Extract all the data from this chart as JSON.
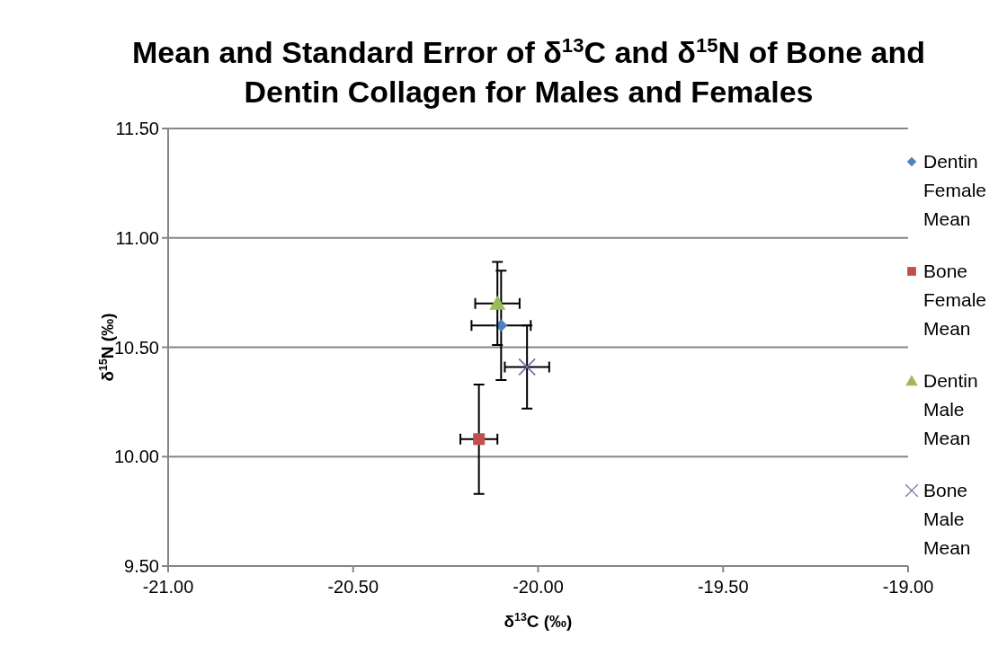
{
  "chart_data": {
    "type": "scatter",
    "title": "Mean and Standard Error of δ$^{13}$C and δ$^{15}$N of Bone and Dentin Collagen for Males and Females",
    "xlabel": "δ$^{13}$C (‰)",
    "ylabel": "δ$^{15}$N (‰)",
    "xlim": [
      -21,
      -19
    ],
    "xticks": [
      {
        "value": -21,
        "label": "-21.00"
      },
      {
        "value": -20.5,
        "label": "-20.50"
      },
      {
        "value": -20,
        "label": "-20.00"
      },
      {
        "value": -19.5,
        "label": "-19.50"
      },
      {
        "value": -19,
        "label": "-19.00"
      }
    ],
    "ylim": [
      9.5,
      11.5
    ],
    "yticks": [
      {
        "value": 9.5,
        "label": "9.50"
      },
      {
        "value": 10,
        "label": "10.00"
      },
      {
        "value": 10.5,
        "label": "10.50"
      },
      {
        "value": 11,
        "label": "11.00"
      },
      {
        "value": 11.5,
        "label": "11.50"
      }
    ],
    "grid": "y",
    "legend": "right",
    "series": [
      {
        "name": "Dentin Female Mean",
        "color": "#4f81bd",
        "marker": "diamond",
        "x": [
          -20.1
        ],
        "values": [
          10.6
        ],
        "errors": [
          0.25
        ],
        "xerrors": [
          0.08
        ]
      },
      {
        "name": "Bone Female Mean",
        "color": "#c0504d",
        "marker": "square",
        "x": [
          -20.16
        ],
        "values": [
          10.08
        ],
        "errors": [
          0.25
        ],
        "xerrors": [
          0.05
        ]
      },
      {
        "name": "Dentin Male Mean",
        "color": "#9bbb59",
        "marker": "triangle",
        "x": [
          -20.11
        ],
        "values": [
          10.7
        ],
        "errors": [
          0.19
        ],
        "xerrors": [
          0.06
        ]
      },
      {
        "name": "Bone Male Mean",
        "color": "#8064a2",
        "marker": "cross",
        "x": [
          -20.03
        ],
        "values": [
          10.41
        ],
        "errors": [
          0.19
        ],
        "xerrors": [
          0.06
        ]
      }
    ]
  }
}
